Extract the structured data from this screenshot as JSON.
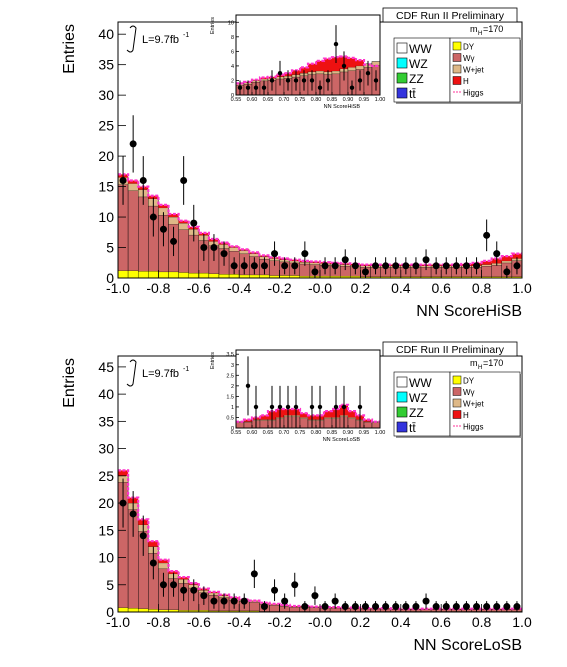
{
  "chart_data": [
    {
      "type": "bar",
      "stacked": true,
      "header": "CDF Run II Preliminary",
      "lumi": "L=9.7fb",
      "lumi_sup": "-1",
      "xlabel": "NN ScoreHiSB",
      "ylabel": "Entries",
      "xlim": [
        -1.0,
        1.0
      ],
      "ylim": [
        0,
        42
      ],
      "xticks": [
        "-1.0",
        "-0.8",
        "-0.6",
        "-0.4",
        "-0.2",
        "-0.0",
        "0.2",
        "0.4",
        "0.6",
        "0.8",
        "1.0"
      ],
      "yticks": [
        "0",
        "5",
        "10",
        "15",
        "20",
        "25",
        "30",
        "35",
        "40"
      ],
      "background_total": [
        16.5,
        15.5,
        14.5,
        13,
        11.5,
        10,
        9,
        8,
        7,
        6,
        5.5,
        5,
        4.5,
        4,
        3.5,
        3.2,
        3,
        2.8,
        2.6,
        2.5,
        2.4,
        2.3,
        2.2,
        2.1,
        2,
        2,
        2,
        2,
        2,
        2,
        2,
        2,
        2,
        2,
        2,
        2,
        2.2,
        2.4,
        2.8,
        3.2
      ],
      "higgs_total": [
        17,
        16,
        15,
        13.5,
        12,
        10.5,
        9.4,
        8.4,
        7.4,
        6.4,
        5.8,
        5.2,
        4.7,
        4.2,
        3.7,
        3.4,
        3.2,
        3,
        2.8,
        2.7,
        2.6,
        2.5,
        2.4,
        2.3,
        2.2,
        2.2,
        2.2,
        2.2,
        2.2,
        2.2,
        2.2,
        2.2,
        2.2,
        2.2,
        2.3,
        2.5,
        2.8,
        3.2,
        3.6,
        4
      ],
      "dy_values": [
        1.2,
        1.2,
        1.1,
        1.1,
        1,
        1,
        0.9,
        0.8,
        0.8,
        0.7,
        0.6,
        0.6,
        0.5,
        0.5,
        0.5,
        0.4,
        0.4,
        0.4,
        0.3,
        0.3,
        0.3,
        0.3,
        0.3,
        0.3,
        0.2,
        0.2,
        0.2,
        0.2,
        0.2,
        0.2,
        0.2,
        0.2,
        0.2,
        0.2,
        0.2,
        0.2,
        0.2,
        0.2,
        0.2,
        0.2
      ],
      "data_points": {
        "x": [
          -0.975,
          -0.925,
          -0.875,
          -0.825,
          -0.775,
          -0.725,
          -0.675,
          -0.625,
          -0.575,
          -0.525,
          -0.475,
          -0.425,
          -0.375,
          -0.325,
          -0.275,
          -0.225,
          -0.175,
          -0.125,
          -0.075,
          -0.025,
          0.025,
          0.075,
          0.125,
          0.175,
          0.225,
          0.275,
          0.325,
          0.375,
          0.425,
          0.475,
          0.525,
          0.575,
          0.625,
          0.675,
          0.725,
          0.775,
          0.825,
          0.875,
          0.925,
          0.975
        ],
        "y": [
          16,
          22,
          16,
          10,
          8,
          6,
          16,
          9,
          5,
          5,
          4,
          2,
          2,
          2,
          2,
          4,
          2,
          2,
          4,
          1,
          2,
          2,
          3,
          2,
          1,
          2,
          2,
          2,
          2,
          2,
          3,
          2,
          2,
          2,
          2,
          2,
          7,
          4,
          1,
          2
        ],
        "err": [
          4,
          4.7,
          4,
          3.2,
          2.8,
          2.4,
          4,
          3,
          2.2,
          2.2,
          2,
          1.4,
          1.4,
          1.4,
          1.4,
          2,
          1.4,
          1.4,
          2,
          1,
          1.4,
          1.4,
          1.7,
          1.4,
          1,
          1.4,
          1.4,
          1.4,
          1.4,
          1.4,
          1.7,
          1.4,
          1.4,
          1.4,
          1.4,
          1.4,
          2.6,
          2,
          1,
          1.4
        ]
      },
      "legend_left": [
        {
          "label": "WW",
          "color": "#ffffff"
        },
        {
          "label": "WZ",
          "color": "#00ffff"
        },
        {
          "label": "ZZ",
          "color": "#33cc33"
        },
        {
          "label": "tt̄",
          "color": "#3333dd"
        }
      ],
      "legend_right_title": "m",
      "legend_right_title_sub": "H",
      "legend_right_title_val": "=170",
      "legend_right": [
        {
          "label": "DY",
          "color": "#ffff00"
        },
        {
          "label": "Wγ",
          "color": "#cc6666"
        },
        {
          "label": "W+jet",
          "color": "#deb887"
        },
        {
          "label": "H",
          "color": "#ee1111"
        },
        {
          "label": "Higgs",
          "color": "#ff3399",
          "line": true
        }
      ],
      "inset": {
        "xlabel": "NN ScoreHiSB",
        "ylabel": "Entries",
        "xlim": [
          0.55,
          1.0
        ],
        "ylim": [
          0,
          11
        ],
        "xticks": [
          "0.55",
          "0.60",
          "0.65",
          "0.70",
          "0.75",
          "0.80",
          "0.85",
          "0.90",
          "0.95",
          "1.00"
        ],
        "yticks": [
          "0",
          "2",
          "4",
          "6",
          "8",
          "10"
        ],
        "background_total": [
          1.5,
          1.7,
          2,
          2.2,
          2.3,
          2.5,
          2.6,
          2.8,
          3,
          3.2,
          3.3,
          3.2,
          3.3,
          3.6,
          3.8,
          4,
          4.3,
          4.6
        ],
        "higgs_total": [
          1.6,
          1.8,
          2.1,
          2.4,
          2.5,
          2.8,
          3,
          3.4,
          3.8,
          4.3,
          4.7,
          5,
          5.2,
          5.3,
          5.1,
          4.8,
          4.2,
          4
        ],
        "data_points": {
          "x": [
            0.5625,
            0.5875,
            0.6125,
            0.6375,
            0.6625,
            0.6875,
            0.7125,
            0.7375,
            0.7625,
            0.7875,
            0.8125,
            0.8375,
            0.8625,
            0.8875,
            0.9125,
            0.9375,
            0.9625,
            0.9875
          ],
          "y": [
            1,
            1,
            1,
            1,
            2,
            3,
            2,
            2,
            2,
            2,
            1,
            2,
            7,
            4,
            1,
            2,
            3,
            2
          ],
          "err": [
            1,
            1,
            1,
            1,
            1.4,
            1.7,
            1.4,
            1.4,
            1.4,
            1.4,
            1,
            1.4,
            2.6,
            2,
            1,
            1.4,
            1.7,
            1.4
          ]
        }
      }
    },
    {
      "type": "bar",
      "stacked": true,
      "header": "CDF Run II Preliminary",
      "lumi": "L=9.7fb",
      "lumi_sup": "-1",
      "xlabel": "NN ScoreLoSB",
      "ylabel": "Entries",
      "xlim": [
        -1.0,
        1.0
      ],
      "ylim": [
        0,
        47
      ],
      "xticks": [
        "-1.0",
        "-0.8",
        "-0.6",
        "-0.4",
        "-0.2",
        "-0.0",
        "0.2",
        "0.4",
        "0.6",
        "0.8",
        "1.0"
      ],
      "yticks": [
        "0",
        "5",
        "10",
        "15",
        "20",
        "25",
        "30",
        "35",
        "40",
        "45"
      ],
      "background_total": [
        25,
        20,
        16,
        12,
        9,
        7,
        6,
        5,
        4,
        3.5,
        3,
        2.5,
        2.2,
        2,
        1.6,
        1.4,
        1.2,
        1,
        1,
        0.9,
        0.8,
        0.8,
        0.7,
        0.7,
        0.6,
        0.6,
        0.6,
        0.5,
        0.5,
        0.5,
        0.5,
        0.5,
        0.5,
        0.5,
        0.5,
        0.5,
        0.5,
        0.5,
        0.5,
        0.5
      ],
      "higgs_total": [
        26,
        21,
        17,
        13,
        9.6,
        7.5,
        6.4,
        5.3,
        4.3,
        3.7,
        3.2,
        2.7,
        2.3,
        2.1,
        1.7,
        1.5,
        1.3,
        1.1,
        1.1,
        1,
        0.9,
        0.9,
        0.8,
        0.8,
        0.7,
        0.7,
        0.7,
        0.6,
        0.6,
        0.6,
        0.6,
        0.6,
        0.6,
        0.6,
        0.6,
        0.6,
        0.6,
        0.6,
        0.6,
        0.6
      ],
      "dy_values": [
        0.8,
        0.7,
        0.6,
        0.5,
        0.4,
        0.4,
        0.3,
        0.3,
        0.3,
        0.2,
        0.2,
        0.2,
        0.2,
        0.2,
        0.1,
        0.1,
        0.1,
        0.1,
        0.1,
        0.1,
        0.1,
        0.1,
        0.1,
        0.1,
        0.1,
        0.1,
        0.1,
        0.1,
        0.1,
        0.1,
        0.1,
        0.1,
        0.1,
        0.1,
        0.1,
        0.1,
        0.1,
        0.1,
        0.1,
        0.1
      ],
      "data_points": {
        "x": [
          -0.975,
          -0.925,
          -0.875,
          -0.825,
          -0.775,
          -0.725,
          -0.675,
          -0.625,
          -0.575,
          -0.525,
          -0.475,
          -0.425,
          -0.375,
          -0.325,
          -0.275,
          -0.225,
          -0.175,
          -0.125,
          -0.075,
          -0.025,
          0.025,
          0.075,
          0.125,
          0.175,
          0.225,
          0.275,
          0.325,
          0.375,
          0.425,
          0.475,
          0.525,
          0.575,
          0.625,
          0.675,
          0.725,
          0.775,
          0.825,
          0.875,
          0.925,
          0.975
        ],
        "y": [
          20,
          18,
          14,
          9,
          5,
          5,
          4,
          4,
          3,
          2,
          2,
          2,
          2,
          7,
          1,
          4,
          2,
          5,
          1,
          3,
          1,
          2,
          1,
          1,
          1,
          1,
          1,
          1,
          1,
          1,
          2,
          1,
          1,
          1,
          1,
          1,
          1,
          1,
          1,
          1
        ],
        "err": [
          4.5,
          4.2,
          3.7,
          3,
          2.2,
          2.2,
          2,
          2,
          1.7,
          1.4,
          1.4,
          1.4,
          1.4,
          2.6,
          1,
          2,
          1.4,
          2.2,
          1,
          1.7,
          1,
          1.4,
          1,
          1,
          1,
          1,
          1,
          1,
          1,
          1,
          1.4,
          1,
          1,
          1,
          1,
          1,
          1,
          1,
          1,
          1
        ]
      },
      "legend_left": [
        {
          "label": "WW",
          "color": "#ffffff"
        },
        {
          "label": "WZ",
          "color": "#00ffff"
        },
        {
          "label": "ZZ",
          "color": "#33cc33"
        },
        {
          "label": "tt̄",
          "color": "#3333dd"
        }
      ],
      "legend_right_title": "m",
      "legend_right_title_sub": "H",
      "legend_right_title_val": "=170",
      "legend_right": [
        {
          "label": "DY",
          "color": "#ffff00"
        },
        {
          "label": "Wγ",
          "color": "#cc6666"
        },
        {
          "label": "W+jet",
          "color": "#deb887"
        },
        {
          "label": "H",
          "color": "#ee1111"
        },
        {
          "label": "Higgs",
          "color": "#ff3399",
          "line": true
        }
      ],
      "inset": {
        "xlabel": "NN ScoreLoSB",
        "ylabel": "Entries",
        "xlim": [
          0.55,
          1.0
        ],
        "ylim": [
          0,
          3.7
        ],
        "xticks": [
          "0.55",
          "0.60",
          "0.65",
          "0.70",
          "0.75",
          "0.80",
          "0.85",
          "0.90",
          "0.95",
          "1.00"
        ],
        "yticks": [
          "0",
          "0.5",
          "1",
          "1.5",
          "2",
          "2.5",
          "3",
          "3.5"
        ],
        "background_total": [
          0.3,
          0.3,
          0.4,
          0.4,
          0.4,
          0.5,
          0.6,
          0.6,
          0.5,
          0.4,
          0.4,
          0.5,
          0.5,
          0.6,
          0.5,
          0.4,
          0.3,
          0.3
        ],
        "higgs_total": [
          0.3,
          0.4,
          0.5,
          0.6,
          0.8,
          0.9,
          0.9,
          0.9,
          0.7,
          0.6,
          0.6,
          0.8,
          0.9,
          1.1,
          0.8,
          0.6,
          0.4,
          0.3
        ],
        "data_points": {
          "x": [
            0.5625,
            0.5875,
            0.6125,
            0.6375,
            0.6625,
            0.6875,
            0.7125,
            0.7375,
            0.7625,
            0.7875,
            0.8125,
            0.8375,
            0.8625,
            0.8875,
            0.9125,
            0.9375,
            0.9625,
            0.9875
          ],
          "y": [
            0,
            2,
            1,
            0,
            1,
            1,
            1,
            1,
            0,
            1,
            1,
            0,
            1,
            1,
            0,
            1,
            0,
            0
          ],
          "err": [
            0,
            1.4,
            1,
            0,
            1,
            1,
            1,
            1,
            0,
            1,
            1,
            0,
            1,
            1,
            0,
            1,
            0,
            0
          ]
        }
      }
    }
  ]
}
